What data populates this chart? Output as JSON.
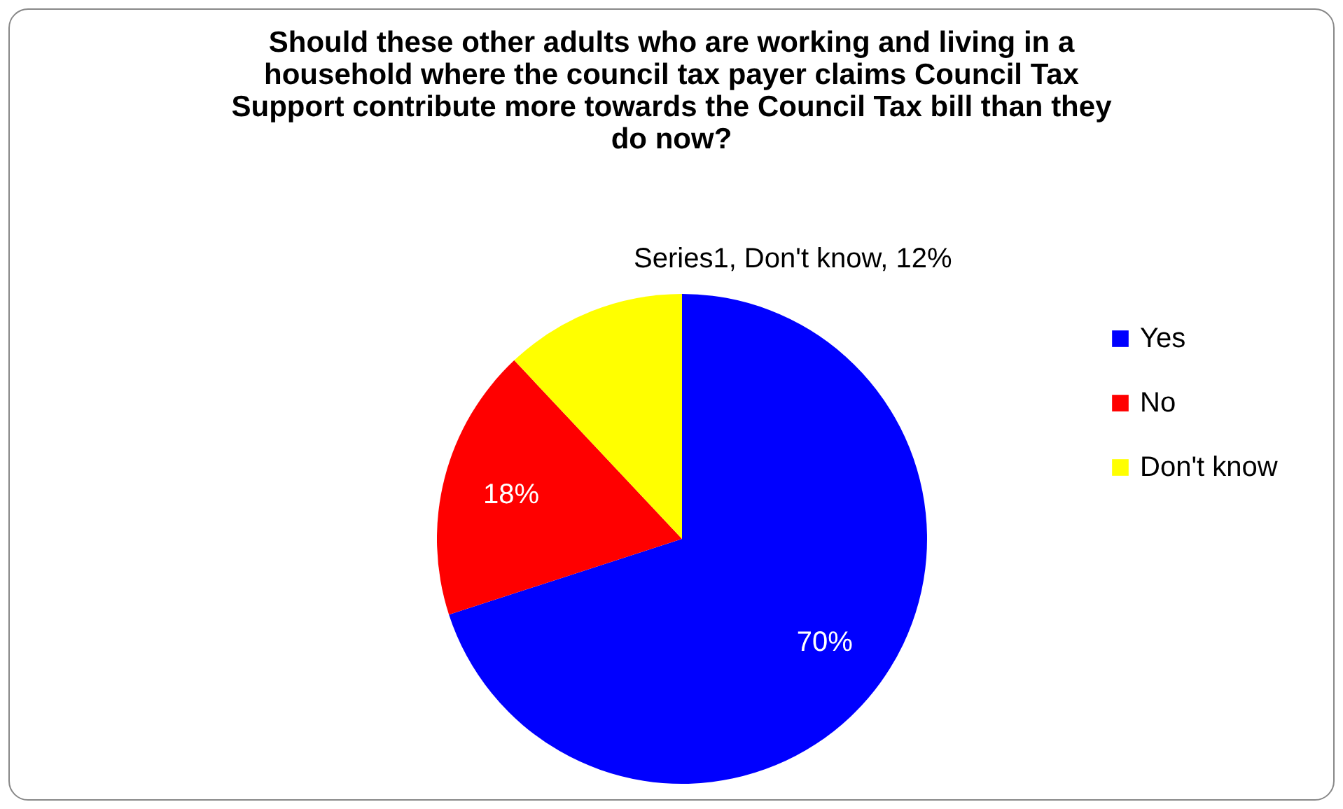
{
  "chart_data": {
    "type": "pie",
    "title": "Should these other adults who are working and living in a household where the council tax payer claims Council Tax Support contribute more towards the Council Tax bill than they do now?",
    "categories": [
      "Yes",
      "No",
      "Don't know"
    ],
    "values": [
      70,
      18,
      12
    ],
    "colors": [
      "#0000ff",
      "#ff0000",
      "#ffff00"
    ],
    "value_labels": [
      "70%",
      "18%",
      "Series1, Don't know, 12%"
    ],
    "legend": "right"
  }
}
